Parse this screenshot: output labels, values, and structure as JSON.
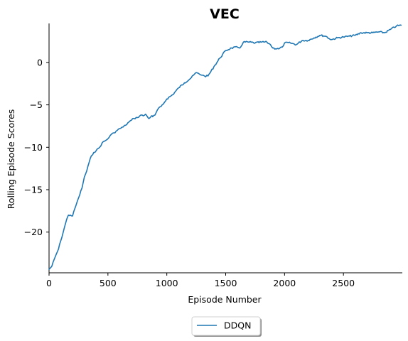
{
  "chart_data": {
    "type": "line",
    "title": "VEC",
    "xlabel": "Episode Number",
    "ylabel": "Rolling Episode Scores",
    "xlim": [
      0,
      3000
    ],
    "ylim": [
      -24.8,
      4.6
    ],
    "x_ticks": [
      0,
      500,
      1000,
      1500,
      2000,
      2500
    ],
    "y_ticks": [
      0,
      -5,
      -10,
      -15,
      -20
    ],
    "x_tick_labels": [
      "0",
      "500",
      "1000",
      "1500",
      "2000",
      "2500"
    ],
    "y_tick_labels": [
      "0",
      "−5",
      "−10",
      "−15",
      "−20"
    ],
    "grid": false,
    "legend_position": "bottom-center",
    "series": [
      {
        "name": "DDQN",
        "color": "#1f77b4",
        "x": [
          0,
          25,
          50,
          80,
          100,
          130,
          150,
          165,
          180,
          200,
          220,
          250,
          280,
          300,
          320,
          340,
          360,
          380,
          400,
          430,
          450,
          480,
          500,
          520,
          550,
          580,
          600,
          630,
          650,
          680,
          700,
          720,
          750,
          780,
          800,
          820,
          840,
          850,
          870,
          880,
          900,
          920,
          950,
          980,
          1000,
          1050,
          1100,
          1150,
          1200,
          1250,
          1270,
          1300,
          1320,
          1350,
          1400,
          1450,
          1500,
          1550,
          1600,
          1620,
          1650,
          1700,
          1750,
          1800,
          1850,
          1880,
          1900,
          1950,
          1980,
          2000,
          2050,
          2100,
          2150,
          2200,
          2250,
          2300,
          2350,
          2380,
          2400,
          2450,
          2500,
          2550,
          2600,
          2650,
          2700,
          2750,
          2800,
          2850,
          2900,
          2950,
          2990
        ],
        "values": [
          -24.4,
          -24.0,
          -23.0,
          -22.0,
          -21.0,
          -19.5,
          -18.5,
          -18.0,
          -18.0,
          -18.1,
          -17.2,
          -16.0,
          -14.8,
          -13.5,
          -12.8,
          -11.8,
          -11.0,
          -10.6,
          -10.4,
          -10.0,
          -9.5,
          -9.2,
          -9.0,
          -8.6,
          -8.3,
          -8.0,
          -7.8,
          -7.6,
          -7.4,
          -7.0,
          -6.8,
          -6.6,
          -6.5,
          -6.2,
          -6.3,
          -6.1,
          -6.5,
          -6.6,
          -6.3,
          -6.4,
          -6.2,
          -5.6,
          -5.2,
          -4.7,
          -4.3,
          -3.8,
          -3.0,
          -2.4,
          -1.9,
          -1.2,
          -1.3,
          -1.5,
          -1.6,
          -1.6,
          -0.5,
          0.5,
          1.4,
          1.7,
          1.8,
          1.7,
          2.4,
          2.4,
          2.3,
          2.4,
          2.4,
          2.1,
          1.7,
          1.6,
          1.8,
          2.3,
          2.3,
          2.1,
          2.6,
          2.6,
          2.9,
          3.2,
          3.1,
          2.8,
          2.7,
          2.9,
          3.0,
          3.1,
          3.2,
          3.5,
          3.5,
          3.5,
          3.6,
          3.5,
          3.9,
          4.3,
          4.4
        ]
      }
    ]
  }
}
